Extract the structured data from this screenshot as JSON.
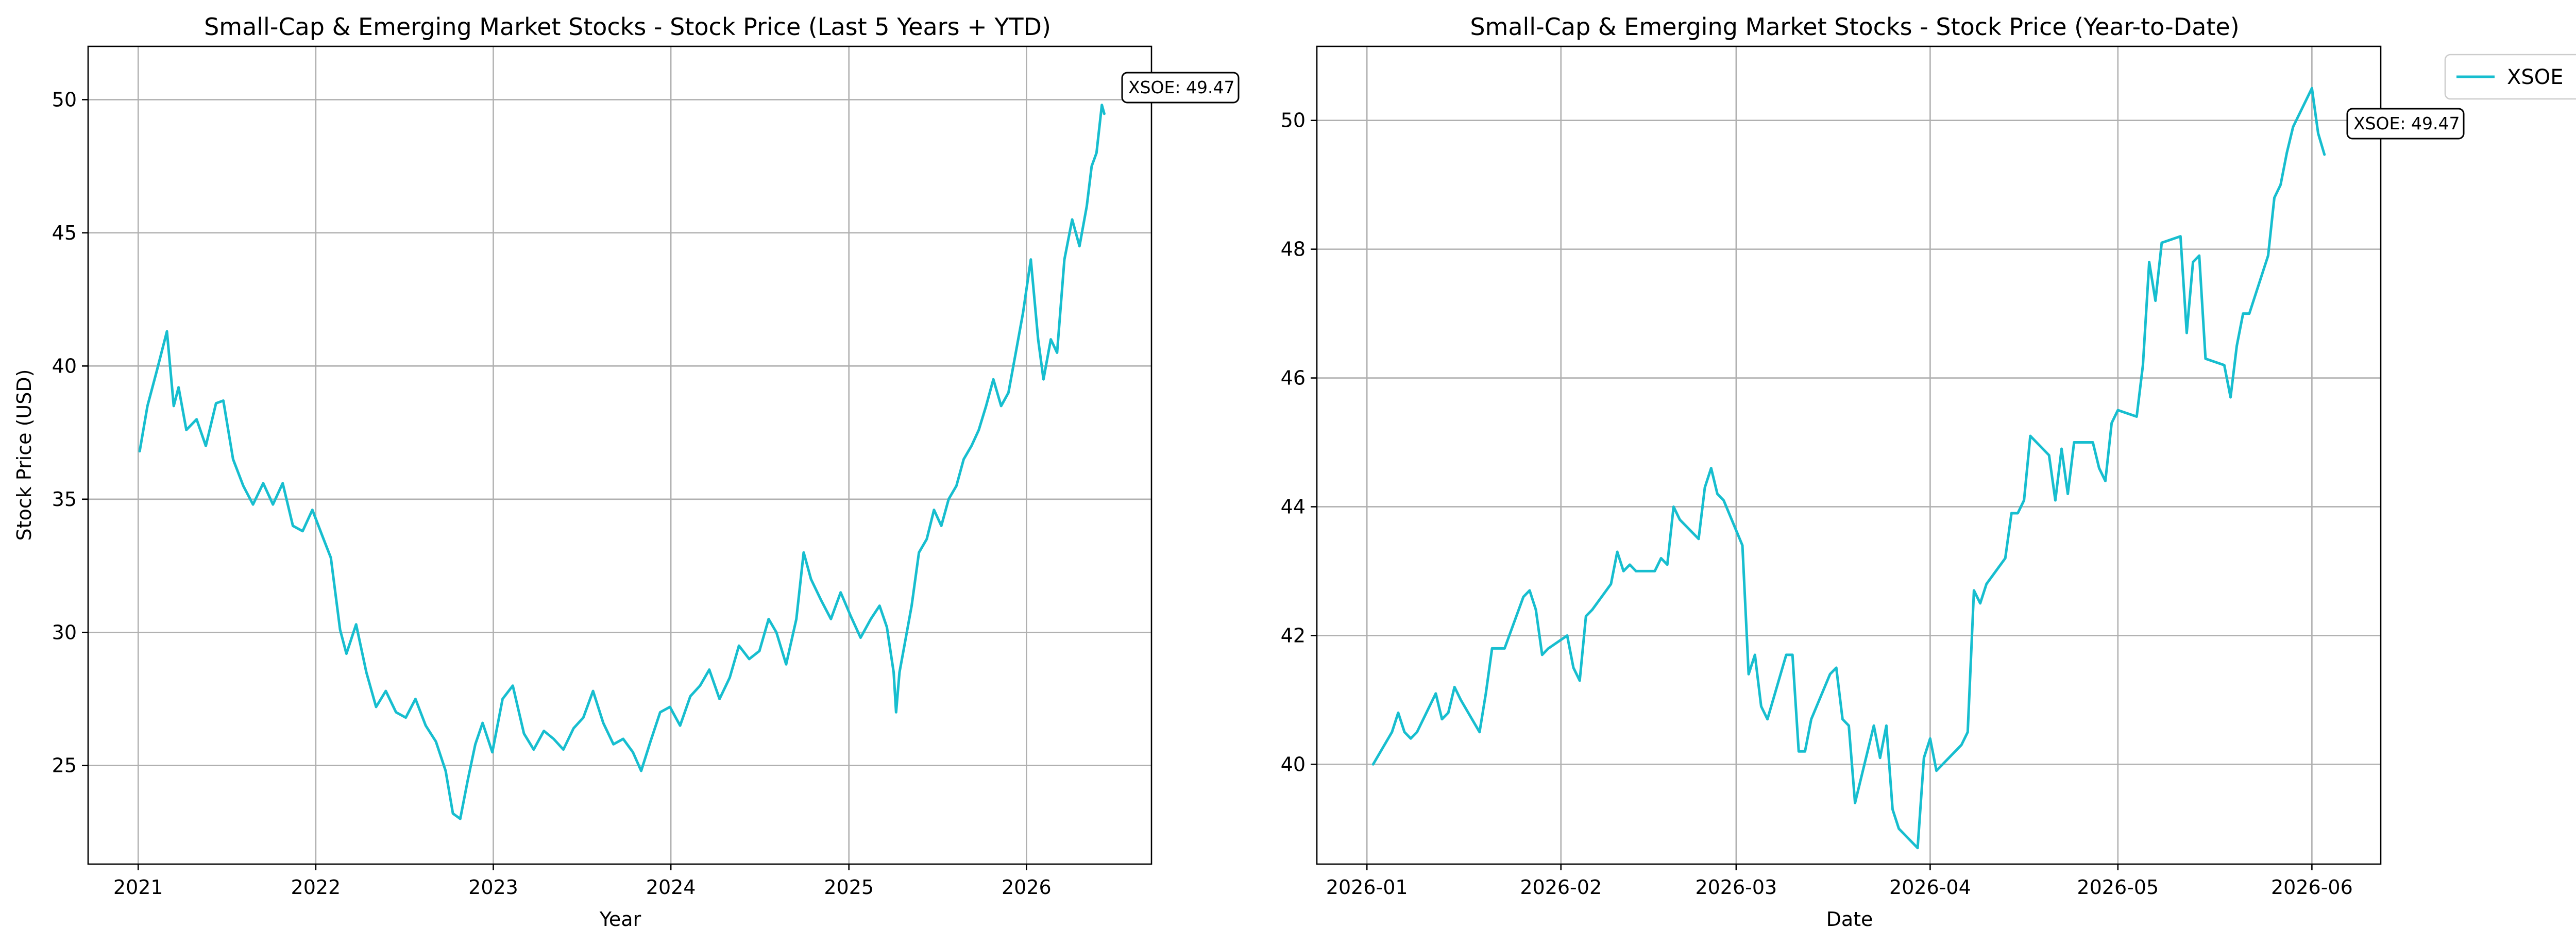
{
  "chart_data": [
    {
      "type": "line",
      "title": "Small-Cap & Emerging Market Stocks - Stock Price (Last 5 Years + YTD)",
      "xlabel": "Year",
      "ylabel": "Stock Price (USD)",
      "x_ticks": [
        "2021",
        "2022",
        "2023",
        "2024",
        "2025",
        "2026"
      ],
      "y_ticks": [
        "25",
        "30",
        "35",
        "40",
        "45",
        "50"
      ],
      "xlim": [
        "2020-09-20",
        "2026-09-15"
      ],
      "ylim": [
        21.3,
        52.0
      ],
      "grid": true,
      "color": "#17becf",
      "annotation": "XSOE: 49.47",
      "series": [
        {
          "x": [
            "2021-01-04",
            "2021-01-20",
            "2021-02-08",
            "2021-03-01",
            "2021-03-15",
            "2021-03-25",
            "2021-04-10",
            "2021-05-01",
            "2021-05-20",
            "2021-06-10",
            "2021-06-25",
            "2021-07-15",
            "2021-08-05",
            "2021-08-25",
            "2021-09-15",
            "2021-10-05",
            "2021-10-25",
            "2021-11-15",
            "2021-12-05",
            "2021-12-25",
            "2022-01-15",
            "2022-02-01",
            "2022-02-20",
            "2022-03-05",
            "2022-03-25",
            "2022-04-15",
            "2022-05-05",
            "2022-05-25",
            "2022-06-15",
            "2022-07-05",
            "2022-07-25",
            "2022-08-15",
            "2022-09-05",
            "2022-09-25",
            "2022-10-10",
            "2022-10-25",
            "2022-11-10",
            "2022-11-25",
            "2022-12-10",
            "2022-12-30",
            "2023-01-20",
            "2023-02-10",
            "2023-03-05",
            "2023-03-25",
            "2023-04-15",
            "2023-05-05",
            "2023-05-25",
            "2023-06-15",
            "2023-07-05",
            "2023-07-25",
            "2023-08-15",
            "2023-09-05",
            "2023-09-25",
            "2023-10-15",
            "2023-11-01",
            "2023-11-20",
            "2023-12-10",
            "2023-12-30",
            "2024-01-20",
            "2024-02-10",
            "2024-03-01",
            "2024-03-20",
            "2024-04-10",
            "2024-05-01",
            "2024-05-20",
            "2024-06-10",
            "2024-07-01",
            "2024-07-20",
            "2024-08-05",
            "2024-08-25",
            "2024-09-15",
            "2024-09-30",
            "2024-10-15",
            "2024-11-05",
            "2024-11-25",
            "2024-12-15",
            "2025-01-05",
            "2025-01-25",
            "2025-02-15",
            "2025-03-05",
            "2025-03-20",
            "2025-04-03",
            "2025-04-08",
            "2025-04-15",
            "2025-04-25",
            "2025-05-10",
            "2025-05-25",
            "2025-06-10",
            "2025-06-25",
            "2025-07-10",
            "2025-07-25",
            "2025-08-10",
            "2025-08-25",
            "2025-09-10",
            "2025-09-25",
            "2025-10-10",
            "2025-10-25",
            "2025-11-10",
            "2025-11-25",
            "2025-12-10",
            "2025-12-25",
            "2026-01-10",
            "2026-01-25",
            "2026-02-05",
            "2026-02-20",
            "2026-03-05",
            "2026-03-20",
            "2026-04-05",
            "2026-04-20",
            "2026-05-05",
            "2026-05-15",
            "2026-05-25",
            "2026-06-05",
            "2026-06-10"
          ],
          "y": [
            36.8,
            38.5,
            39.8,
            41.3,
            38.5,
            39.2,
            37.6,
            38.0,
            37.0,
            38.6,
            38.7,
            36.5,
            35.5,
            34.8,
            35.6,
            34.8,
            35.6,
            34.0,
            33.8,
            34.6,
            33.6,
            32.8,
            30.1,
            29.2,
            30.3,
            28.5,
            27.2,
            27.8,
            27.0,
            26.8,
            27.5,
            26.5,
            25.9,
            24.8,
            23.2,
            23.0,
            24.5,
            25.8,
            26.6,
            25.5,
            27.5,
            28.0,
            26.2,
            25.6,
            26.3,
            26.0,
            25.6,
            26.4,
            26.8,
            27.8,
            26.6,
            25.8,
            26.0,
            25.5,
            24.8,
            25.9,
            27.0,
            27.2,
            26.5,
            27.6,
            28.0,
            28.6,
            27.5,
            28.3,
            29.5,
            29.0,
            29.3,
            30.5,
            30.0,
            28.8,
            30.5,
            33.0,
            32.0,
            31.2,
            30.5,
            31.5,
            30.6,
            29.8,
            30.5,
            31.0,
            30.2,
            28.5,
            27.0,
            28.5,
            29.5,
            31.0,
            33.0,
            33.5,
            34.6,
            34.0,
            35.0,
            35.5,
            36.5,
            37.0,
            37.6,
            38.5,
            39.5,
            38.5,
            39.0,
            40.5,
            42.0,
            44.0,
            41.0,
            39.5,
            41.0,
            40.5,
            44.0,
            45.5,
            44.5,
            46.0,
            47.5,
            48.0,
            49.8,
            49.47
          ]
        }
      ]
    },
    {
      "type": "line",
      "title": "Small-Cap & Emerging Market Stocks - Stock Price (Year-to-Date)",
      "xlabel": "Date",
      "ylabel": "",
      "x_ticks": [
        "2026-01",
        "2026-02",
        "2026-03",
        "2026-04",
        "2026-05",
        "2026-06"
      ],
      "y_ticks": [
        "40",
        "42",
        "44",
        "46",
        "48",
        "50"
      ],
      "xlim": [
        "2025-12-24",
        "2026-06-12"
      ],
      "ylim": [
        38.45,
        51.15
      ],
      "grid": true,
      "color": "#17becf",
      "annotation": "XSOE: 49.47",
      "legend": {
        "placement": "outside top-right",
        "entries": [
          "XSOE"
        ]
      },
      "series": [
        {
          "name": "XSOE",
          "x": [
            "2026-01-02",
            "2026-01-05",
            "2026-01-06",
            "2026-01-07",
            "2026-01-08",
            "2026-01-09",
            "2026-01-12",
            "2026-01-13",
            "2026-01-14",
            "2026-01-15",
            "2026-01-16",
            "2026-01-19",
            "2026-01-20",
            "2026-01-21",
            "2026-01-22",
            "2026-01-23",
            "2026-01-26",
            "2026-01-27",
            "2026-01-28",
            "2026-01-29",
            "2026-01-30",
            "2026-02-02",
            "2026-02-03",
            "2026-02-04",
            "2026-02-05",
            "2026-02-06",
            "2026-02-09",
            "2026-02-10",
            "2026-02-11",
            "2026-02-12",
            "2026-02-13",
            "2026-02-16",
            "2026-02-17",
            "2026-02-18",
            "2026-02-19",
            "2026-02-20",
            "2026-02-23",
            "2026-02-24",
            "2026-02-25",
            "2026-02-26",
            "2026-02-27",
            "2026-03-02",
            "2026-03-03",
            "2026-03-04",
            "2026-03-05",
            "2026-03-06",
            "2026-03-09",
            "2026-03-10",
            "2026-03-11",
            "2026-03-12",
            "2026-03-13",
            "2026-03-16",
            "2026-03-17",
            "2026-03-18",
            "2026-03-19",
            "2026-03-20",
            "2026-03-23",
            "2026-03-24",
            "2026-03-25",
            "2026-03-26",
            "2026-03-27",
            "2026-03-30",
            "2026-03-31",
            "2026-04-01",
            "2026-04-02",
            "2026-04-03",
            "2026-04-06",
            "2026-04-07",
            "2026-04-08",
            "2026-04-09",
            "2026-04-10",
            "2026-04-13",
            "2026-04-14",
            "2026-04-15",
            "2026-04-16",
            "2026-04-17",
            "2026-04-20",
            "2026-04-21",
            "2026-04-22",
            "2026-04-23",
            "2026-04-24",
            "2026-04-27",
            "2026-04-28",
            "2026-04-29",
            "2026-04-30",
            "2026-05-01",
            "2026-05-04",
            "2026-05-05",
            "2026-05-06",
            "2026-05-07",
            "2026-05-08",
            "2026-05-11",
            "2026-05-12",
            "2026-05-13",
            "2026-05-14",
            "2026-05-15",
            "2026-05-18",
            "2026-05-19",
            "2026-05-20",
            "2026-05-21",
            "2026-05-22",
            "2026-05-25",
            "2026-05-26",
            "2026-05-27",
            "2026-05-28",
            "2026-05-29",
            "2026-06-01",
            "2026-06-02",
            "2026-06-03"
          ],
          "y": [
            40.0,
            40.5,
            40.8,
            40.5,
            40.4,
            40.5,
            41.1,
            40.7,
            40.8,
            41.2,
            41.0,
            40.5,
            41.1,
            41.8,
            41.8,
            41.8,
            42.6,
            42.7,
            42.4,
            41.7,
            41.8,
            42.0,
            41.5,
            41.3,
            42.3,
            42.4,
            42.8,
            43.3,
            43.0,
            43.1,
            43.0,
            43.0,
            43.2,
            43.1,
            44.0,
            43.8,
            43.5,
            44.3,
            44.6,
            44.2,
            44.1,
            43.4,
            41.4,
            41.7,
            40.9,
            40.7,
            41.7,
            41.7,
            40.2,
            40.2,
            40.7,
            41.4,
            41.5,
            40.7,
            40.6,
            39.4,
            40.6,
            40.1,
            40.6,
            39.3,
            39.0,
            38.7,
            40.1,
            40.4,
            39.9,
            40.0,
            40.3,
            40.5,
            42.7,
            42.5,
            42.8,
            43.2,
            43.9,
            43.9,
            44.1,
            45.1,
            44.8,
            44.1,
            44.9,
            44.2,
            45.0,
            45.0,
            44.6,
            44.4,
            45.3,
            45.5,
            45.4,
            46.2,
            47.8,
            47.2,
            48.1,
            48.2,
            46.7,
            47.8,
            47.9,
            46.3,
            46.2,
            45.7,
            46.5,
            47.0,
            47.0,
            47.9,
            48.8,
            49.0,
            49.5,
            49.9,
            50.5,
            49.8,
            49.47
          ]
        }
      ]
    }
  ]
}
